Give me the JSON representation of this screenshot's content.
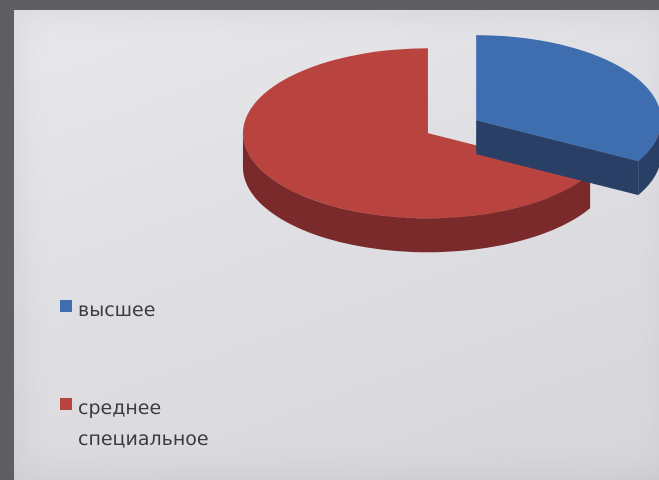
{
  "chart_data": {
    "type": "pie",
    "style": "3d-exploded",
    "series": [
      {
        "name": "",
        "slices": [
          {
            "label": "высшее",
            "value": 33,
            "color": "#3e6db0"
          },
          {
            "label": "среднее специальное",
            "value": 67,
            "color": "#b9433e"
          }
        ]
      }
    ],
    "legend": {
      "placement": "bottom-left",
      "entries": [
        "высшее",
        "среднее специальное"
      ]
    },
    "title": "",
    "colors": {
      "highest_top": "#3e6db0",
      "highest_side": "#2a3f66",
      "special_top": "#b9433e",
      "special_side": "#7a2a2a"
    }
  }
}
